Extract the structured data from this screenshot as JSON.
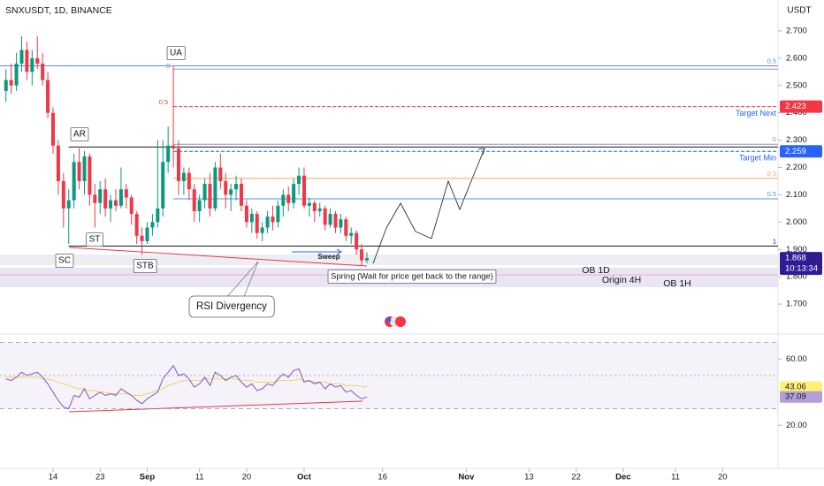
{
  "chart_data": [
    {
      "type": "candlestick",
      "title": "SNXUSDT, 1D, BINANCE",
      "currency": "USDT",
      "up_color": "#089981",
      "down_color": "#f23645",
      "candles": {
        "open": [
          2.48,
          2.52,
          2.5,
          2.58,
          2.63,
          2.55,
          2.6,
          2.58,
          2.52,
          2.4,
          2.28,
          2.15,
          2.05,
          2.08,
          2.22,
          2.15,
          2.24,
          2.1,
          2.07,
          2.12,
          2.05,
          2.08,
          2.06,
          2.12,
          2.09,
          2.03,
          1.95,
          1.93,
          1.98,
          2.0,
          2.05,
          2.22,
          2.28,
          2.27,
          2.15,
          2.18,
          2.12,
          2.04,
          2.08,
          2.14,
          2.05,
          2.2,
          2.15,
          2.1,
          2.12,
          2.14,
          2.06,
          2.0,
          2.03,
          1.96,
          1.98,
          2.02,
          2.0,
          2.06,
          2.1,
          2.07,
          2.14,
          2.17,
          2.06,
          2.07,
          2.04,
          2.05,
          1.99,
          2.03,
          1.98,
          2.01,
          1.95,
          1.96,
          1.9,
          1.86
        ],
        "high": [
          2.56,
          2.58,
          2.62,
          2.68,
          2.66,
          2.63,
          2.68,
          2.62,
          2.55,
          2.42,
          2.3,
          2.18,
          2.12,
          2.25,
          2.27,
          2.26,
          2.25,
          2.14,
          2.15,
          2.16,
          2.1,
          2.12,
          2.2,
          2.14,
          2.1,
          2.04,
          1.98,
          2.0,
          2.03,
          2.3,
          2.3,
          2.35,
          2.57,
          2.3,
          2.2,
          2.2,
          2.14,
          2.1,
          2.16,
          2.18,
          2.22,
          2.25,
          2.18,
          2.14,
          2.17,
          2.16,
          2.08,
          2.05,
          2.04,
          2.0,
          2.04,
          2.06,
          2.08,
          2.12,
          2.13,
          2.16,
          2.2,
          2.2,
          2.09,
          2.08,
          2.07,
          2.06,
          2.05,
          2.04,
          2.03,
          2.02,
          1.98,
          1.97,
          1.92,
          1.89
        ],
        "low": [
          2.44,
          2.47,
          2.48,
          2.55,
          2.52,
          2.5,
          2.56,
          2.5,
          2.38,
          2.25,
          2.1,
          1.98,
          1.92,
          2.05,
          2.12,
          2.1,
          2.06,
          1.98,
          2.03,
          2.02,
          2.0,
          2.04,
          2.05,
          2.05,
          1.99,
          1.92,
          1.88,
          1.92,
          1.95,
          1.98,
          2.02,
          2.18,
          2.2,
          2.1,
          2.1,
          2.08,
          2.0,
          2.0,
          2.05,
          2.02,
          2.04,
          2.12,
          2.05,
          2.04,
          2.08,
          2.04,
          1.98,
          1.96,
          1.94,
          1.93,
          1.96,
          1.97,
          1.98,
          2.02,
          2.04,
          2.05,
          2.1,
          2.05,
          2.02,
          2.0,
          2.02,
          1.97,
          1.98,
          1.96,
          1.96,
          1.93,
          1.92,
          1.88,
          1.84,
          1.85
        ],
        "close": [
          2.52,
          2.5,
          2.58,
          2.63,
          2.55,
          2.6,
          2.58,
          2.52,
          2.4,
          2.28,
          2.15,
          2.05,
          2.08,
          2.22,
          2.15,
          2.24,
          2.1,
          2.07,
          2.12,
          2.05,
          2.08,
          2.06,
          2.12,
          2.09,
          2.03,
          1.95,
          1.93,
          1.98,
          2.0,
          2.05,
          2.22,
          2.28,
          2.27,
          2.15,
          2.18,
          2.12,
          2.04,
          2.08,
          2.14,
          2.05,
          2.2,
          2.15,
          2.1,
          2.12,
          2.14,
          2.06,
          2.0,
          2.03,
          1.96,
          1.98,
          2.02,
          2.0,
          2.06,
          2.1,
          2.07,
          2.14,
          2.17,
          2.06,
          2.07,
          2.04,
          2.05,
          1.99,
          2.03,
          1.98,
          2.01,
          1.95,
          1.96,
          1.9,
          1.86,
          1.868
        ]
      },
      "ylim": [
        1.6,
        2.813
      ],
      "yticks": [
        {
          "value": 2.7,
          "label": "2.700"
        },
        {
          "value": 2.6,
          "label": "2.600"
        },
        {
          "value": 2.5,
          "label": "2.500"
        },
        {
          "value": 2.4,
          "label": "2.400"
        },
        {
          "value": 2.3,
          "label": "2.300"
        },
        {
          "value": 2.2,
          "label": "2.200"
        },
        {
          "value": 2.1,
          "label": "2.100"
        },
        {
          "value": 2.0,
          "label": "2.000"
        },
        {
          "value": 1.9,
          "label": "1.900"
        },
        {
          "value": 1.8,
          "label": "1.800"
        },
        {
          "value": 1.7,
          "label": "1.700"
        }
      ],
      "xlim": [
        -1.14,
        147.6
      ],
      "xticks": [
        {
          "value": 9,
          "label": "14"
        },
        {
          "value": 18,
          "label": "23"
        },
        {
          "value": 27,
          "label": "Sep"
        },
        {
          "value": 37,
          "label": "11"
        },
        {
          "value": 46,
          "label": "20"
        },
        {
          "value": 57,
          "label": "Oct"
        },
        {
          "value": 72,
          "label": "16"
        },
        {
          "value": 88,
          "label": "Nov"
        },
        {
          "value": 100,
          "label": "13"
        },
        {
          "value": 109,
          "label": "22"
        },
        {
          "value": 118,
          "label": "Dec"
        },
        {
          "value": 128,
          "label": "11"
        },
        {
          "value": 137,
          "label": "20"
        }
      ],
      "levels": [
        {
          "price": 2.572,
          "label": "0.5",
          "color": "#5b8fd6"
        },
        {
          "price": 2.56,
          "color": "#9598a1"
        },
        {
          "price": 2.423,
          "label": "Target Next",
          "color": "#f23645"
        },
        {
          "price": 2.285,
          "label": "0",
          "color": "#9598a1"
        },
        {
          "price": 2.275,
          "color": "#131722"
        },
        {
          "price": 2.259,
          "label": "Target Min",
          "color": "#2962ff"
        },
        {
          "price": 2.16,
          "label": "0.3",
          "color": "#f7a35c"
        },
        {
          "price": 2.085,
          "label": "0.5",
          "color": "#5b8fd6"
        },
        {
          "price": 1.912,
          "label": "1",
          "color": "#131722"
        }
      ],
      "price_labels": [
        {
          "value": 2.423,
          "color": "#f23645"
        },
        {
          "value": 2.259,
          "color": "#2962ff"
        },
        {
          "value": 1.868,
          "color": "#311b92"
        }
      ],
      "countdown": "10:13:34",
      "annotations": [
        "UA",
        "AR",
        "ST",
        "SC",
        "STB",
        "Sweep",
        "Spring (Wait for price get back to the range)",
        "RSI Divergency",
        "OB 1D",
        "Origin 4H",
        "OB 1H",
        "0.5",
        "0"
      ]
    },
    {
      "type": "line",
      "series": [
        {
          "color": "#7e57c2",
          "values": [
            48,
            47,
            49,
            52,
            50,
            51,
            52,
            49,
            45,
            40,
            35,
            31,
            30,
            38,
            37,
            42,
            36,
            38,
            40,
            38,
            39,
            38,
            42,
            40,
            38,
            35,
            33,
            36,
            38,
            40,
            48,
            52,
            56,
            50,
            51,
            48,
            43,
            45,
            49,
            44,
            52,
            50,
            47,
            49,
            50,
            46,
            43,
            45,
            41,
            42,
            45,
            44,
            48,
            51,
            49,
            53,
            54,
            46,
            47,
            45,
            46,
            42,
            45,
            43,
            44,
            40,
            41,
            38,
            36,
            37.09
          ]
        },
        {
          "color": "#f0c419",
          "values": [
            49,
            49,
            49,
            49,
            49,
            49,
            49,
            48,
            48,
            47,
            46,
            45,
            44,
            43,
            42,
            42,
            41,
            41,
            40,
            40,
            39,
            39,
            39,
            39,
            38,
            38,
            38,
            39,
            40,
            41,
            42,
            44,
            45,
            46,
            47,
            47,
            47,
            47,
            48,
            48,
            48,
            48,
            48,
            48,
            48,
            47,
            47,
            47,
            46,
            46,
            46,
            46,
            47,
            47,
            47,
            47,
            48,
            47,
            47,
            46,
            46,
            46,
            45,
            45,
            45,
            44,
            44,
            44,
            43.5,
            43.06
          ]
        }
      ],
      "hlines": [
        70,
        50,
        30
      ],
      "ylim": [
        -6,
        74
      ],
      "yticks": [
        {
          "value": 60,
          "label": "60.00"
        },
        {
          "value": 20,
          "label": "20.00"
        }
      ]
    }
  ]
}
